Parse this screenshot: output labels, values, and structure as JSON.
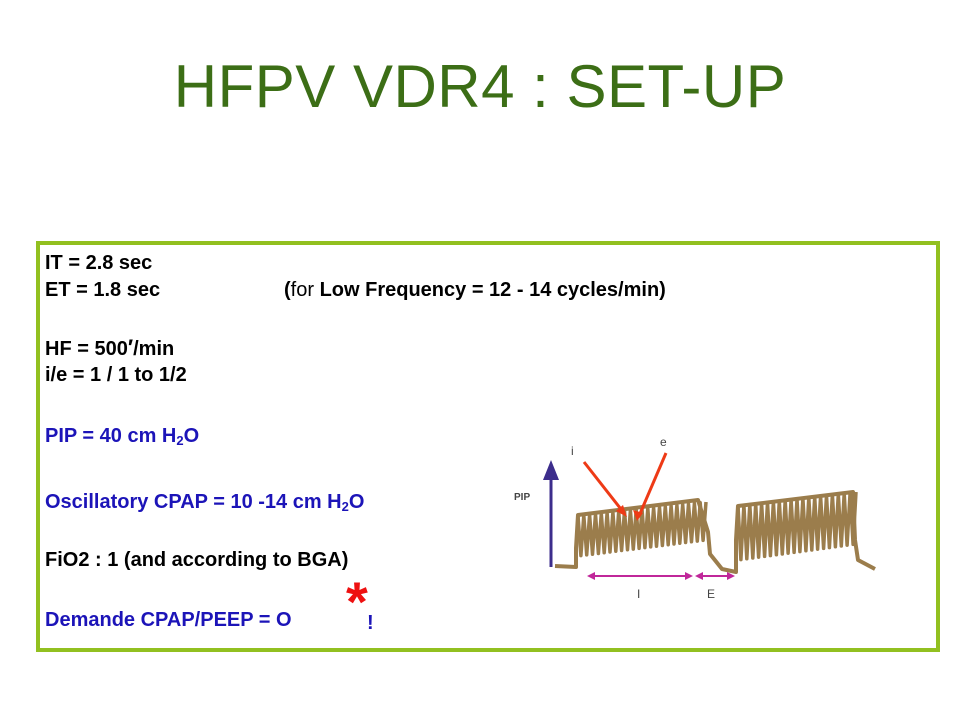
{
  "slide": {
    "title": "HFPV  VDR4 : SET-UP"
  },
  "params": {
    "it": "IT  = 2.8 sec",
    "et": "ET = 1.8 sec",
    "et_note_open": "(",
    "et_note_for": "for",
    "et_note_rest": " Low Frequency  = 12 - 14 cycles/min)",
    "hf_a": "HF = 500",
    "hf_prime": "′",
    "hf_b": "/min",
    "ie": "i/e = 1 / 1  to 1/2",
    "pip_a": "PIP = 40 cm H",
    "pip_sub": "2",
    "pip_b": "O",
    "ocpap_a": "Oscillatory CPAP = 10 -14 cm H",
    "ocpap_sub": "2",
    "ocpap_b": "O",
    "fio2": "FiO2 : 1  (and according to BGA)",
    "demande": "Demande CPAP/PEEP = O",
    "star": "*",
    "bang": "!"
  },
  "diagram": {
    "label_pip": "PIP",
    "label_i_small": "i",
    "label_e_small": "e",
    "label_I": "I",
    "label_E": "E",
    "colors": {
      "wave": "#9b7d4c",
      "axis": "#3c2d8c",
      "arrow_red": "#ee3a16",
      "arrow_magenta": "#c0279a"
    }
  },
  "colors": {
    "title": "#3c6e16",
    "border": "#92c020",
    "blue_text": "#1c14b8",
    "star": "#ee1010"
  }
}
